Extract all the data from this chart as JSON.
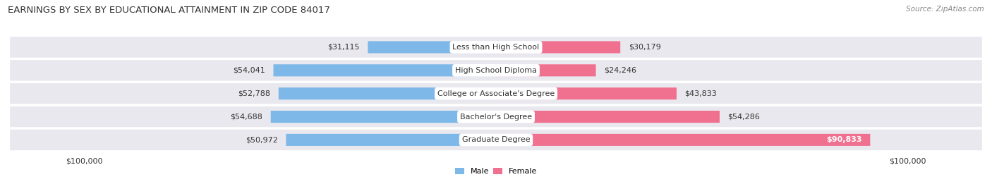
{
  "title": "EARNINGS BY SEX BY EDUCATIONAL ATTAINMENT IN ZIP CODE 84017",
  "source": "Source: ZipAtlas.com",
  "categories": [
    "Less than High School",
    "High School Diploma",
    "College or Associate's Degree",
    "Bachelor's Degree",
    "Graduate Degree"
  ],
  "male_values": [
    31115,
    54041,
    52788,
    54688,
    50972
  ],
  "female_values": [
    30179,
    24246,
    43833,
    54286,
    90833
  ],
  "male_color": "#7EB8E8",
  "female_color": "#F07090",
  "male_label": "Male",
  "female_label": "Female",
  "max_value": 100000,
  "bg_color": "#f5f5f5",
  "row_bg_color": "#e8e8ee",
  "title_fontsize": 9.5,
  "source_fontsize": 7.5,
  "label_fontsize": 8,
  "value_fontsize": 8
}
